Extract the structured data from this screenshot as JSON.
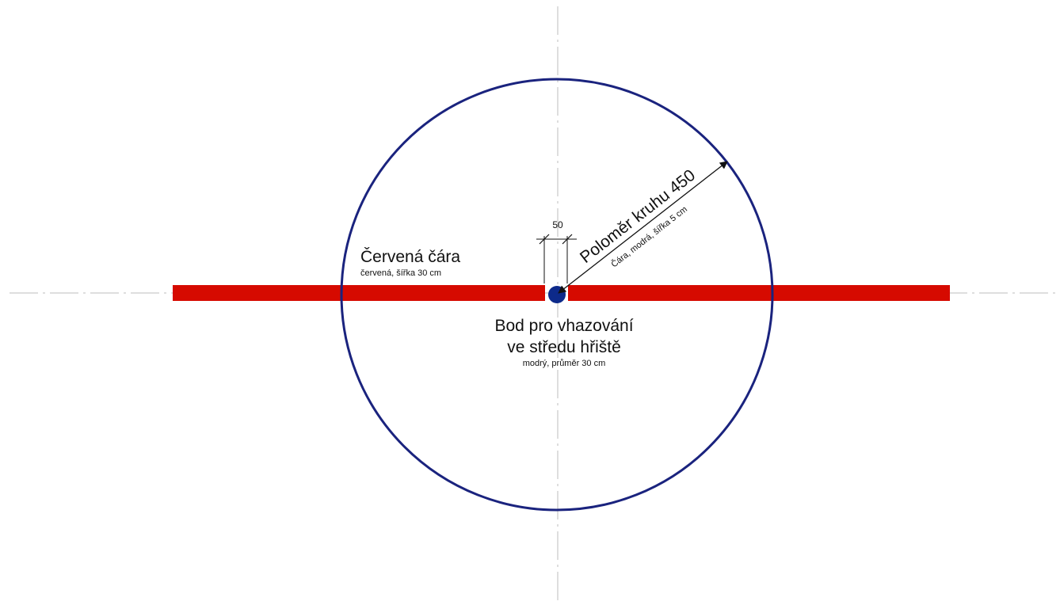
{
  "labels": {
    "red_line_title": "Červená čára",
    "red_line_spec": "červená, šířka 30 cm",
    "faceoff_title_line1": "Bod pro vhazování",
    "faceoff_title_line2": "ve středu hřiště",
    "faceoff_spec": "modrý, průměr 30 cm",
    "radius_title": "Poloměr kruhu 450",
    "radius_spec": "Čára, modrá, šířka 5 cm",
    "gap_dimension": "50"
  },
  "colors": {
    "red_line": "#d60a00",
    "circle": "#1a237e",
    "faceoff_spot": "#0d2a8a",
    "center_lines": "#bdbdbd",
    "text": "#111111"
  },
  "shapes": {
    "red_line": "horizontal bar split into two halves around the centre spot",
    "circle": "outlined circle",
    "faceoff_spot": "filled dot",
    "center_lines": "dash-dot axis lines (horizontal and vertical)"
  }
}
